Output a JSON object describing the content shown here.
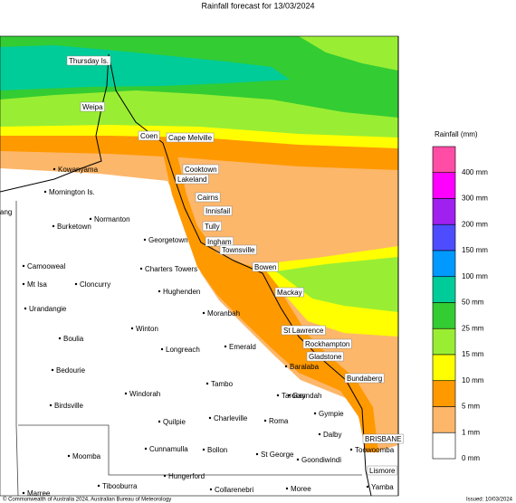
{
  "title": "Rainfall forecast for 13/03/2024",
  "places": [
    "Thursday Is.",
    "Weipa",
    "Coen",
    "Cape Melville",
    "Kowanyama",
    "Cooktown",
    "Lakeland",
    "Mornington Is.",
    "Cairns",
    "Innisfail",
    "ang",
    "Normanton",
    "Burketown",
    "Tully",
    "Georgetown",
    "Ingham",
    "Townsville",
    "Camooweal",
    "Charters Towers",
    "Bowen",
    "Mt Isa",
    "Cloncurry",
    "Hughenden",
    "Mackay",
    "Urandangie",
    "Moranbah",
    "Winton",
    "St Lawrence",
    "Boulia",
    "Longreach",
    "Emerald",
    "Rockhampton",
    "Gladstone",
    "Bedourie",
    "Baralaba",
    "Bundaberg",
    "Tambo",
    "Windorah",
    "Taroom",
    "Gayndah",
    "Birdsville",
    "Gympie",
    "Charleville",
    "Quilpie",
    "Roma",
    "Dalby",
    "BRISBANE",
    "Cunnamulla",
    "Bollon",
    "Toowoomba",
    "St George",
    "Moomba",
    "Goondiwindi",
    "Lismore",
    "Hungerford",
    "Tibooburra",
    "Collarenebri",
    "Moree",
    "Yamba",
    "Marree"
  ],
  "legend": {
    "title": "Rainfall (mm)",
    "items": [
      {
        "label": "400 mm",
        "color": "#ff4da6"
      },
      {
        "label": "300 mm",
        "color": "#ff00ff"
      },
      {
        "label": "200 mm",
        "color": "#a020f0"
      },
      {
        "label": "150 mm",
        "color": "#4d4dff"
      },
      {
        "label": "100 mm",
        "color": "#0099ff"
      },
      {
        "label": "50 mm",
        "color": "#00cc99"
      },
      {
        "label": "25 mm",
        "color": "#33cc33"
      },
      {
        "label": "15 mm",
        "color": "#99ee33"
      },
      {
        "label": "10 mm",
        "color": "#ffff00"
      },
      {
        "label": "5 mm",
        "color": "#ff9900"
      },
      {
        "label": "1 mm",
        "color": "#fdb76a"
      },
      {
        "label": "0 mm",
        "color": "#ffffff"
      }
    ]
  },
  "footer": {
    "copyright": "© Commonwealth of Australia 2024, Australian Bureau of Meteorology",
    "issued": "Issued: 10/03/2024"
  }
}
